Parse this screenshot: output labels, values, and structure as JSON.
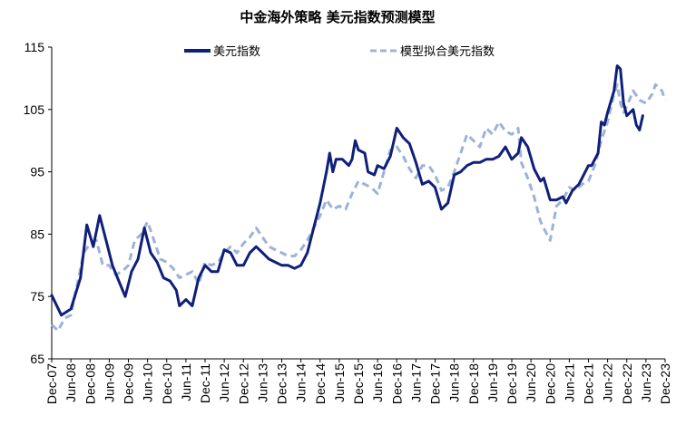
{
  "chart_data": {
    "type": "line",
    "title": "中金海外策略 美元指数预测模型",
    "xlabel": "",
    "ylabel": "",
    "ylim": [
      65,
      115
    ],
    "yticks": [
      65,
      75,
      85,
      95,
      105,
      115
    ],
    "x_start": "Dec-07",
    "x_end": "Dec-23",
    "x_ticks": [
      "Dec-07",
      "Jun-08",
      "Dec-08",
      "Jun-09",
      "Dec-09",
      "Jun-10",
      "Dec-10",
      "Jun-11",
      "Dec-11",
      "Jun-12",
      "Dec-12",
      "Jun-13",
      "Dec-13",
      "Jun-14",
      "Dec-14",
      "Jun-15",
      "Dec-15",
      "Jun-16",
      "Dec-16",
      "Jun-17",
      "Dec-17",
      "Jun-18",
      "Dec-18",
      "Jun-19",
      "Dec-19",
      "Jun-20",
      "Dec-20",
      "Jun-21",
      "Dec-21",
      "Jun-22",
      "Dec-22",
      "Jun-23",
      "Dec-23"
    ],
    "legend_position": "top",
    "grid": false,
    "series": [
      {
        "name": "美元指数",
        "style": "solid",
        "color": "#0f1f7a",
        "points": [
          [
            "Dec-07",
            75.2
          ],
          [
            "Mar-08",
            72.0
          ],
          [
            "Jun-08",
            73.0
          ],
          [
            "Sep-08",
            78.0
          ],
          [
            "Nov-08",
            86.5
          ],
          [
            "Jan-09",
            83.0
          ],
          [
            "Mar-09",
            88.0
          ],
          [
            "May-09",
            84.0
          ],
          [
            "Jul-09",
            80.0
          ],
          [
            "Sep-09",
            77.5
          ],
          [
            "Nov-09",
            75.0
          ],
          [
            "Jan-10",
            79.0
          ],
          [
            "Mar-10",
            81.0
          ],
          [
            "May-10",
            86.0
          ],
          [
            "Jul-10",
            82.0
          ],
          [
            "Sep-10",
            80.5
          ],
          [
            "Nov-10",
            78.0
          ],
          [
            "Jan-11",
            77.5
          ],
          [
            "Mar-11",
            76.0
          ],
          [
            "Apr-11",
            73.5
          ],
          [
            "Jun-11",
            74.5
          ],
          [
            "Aug-11",
            73.5
          ],
          [
            "Oct-11",
            78.0
          ],
          [
            "Dec-11",
            80.0
          ],
          [
            "Feb-12",
            79.0
          ],
          [
            "Apr-12",
            79.0
          ],
          [
            "Jun-12",
            82.5
          ],
          [
            "Aug-12",
            82.0
          ],
          [
            "Oct-12",
            80.0
          ],
          [
            "Dec-12",
            80.0
          ],
          [
            "Feb-13",
            82.0
          ],
          [
            "Apr-13",
            83.0
          ],
          [
            "Jun-13",
            82.0
          ],
          [
            "Aug-13",
            81.0
          ],
          [
            "Oct-13",
            80.5
          ],
          [
            "Dec-13",
            80.0
          ],
          [
            "Feb-14",
            80.0
          ],
          [
            "Apr-14",
            79.5
          ],
          [
            "Jun-14",
            80.0
          ],
          [
            "Aug-14",
            82.0
          ],
          [
            "Oct-14",
            86.0
          ],
          [
            "Dec-14",
            90.0
          ],
          [
            "Feb-15",
            95.0
          ],
          [
            "Mar-15",
            98.0
          ],
          [
            "Apr-15",
            95.0
          ],
          [
            "May-15",
            97.0
          ],
          [
            "Jul-15",
            97.0
          ],
          [
            "Sep-15",
            96.0
          ],
          [
            "Oct-15",
            97.0
          ],
          [
            "Nov-15",
            100.0
          ],
          [
            "Dec-15",
            98.5
          ],
          [
            "Feb-16",
            98.0
          ],
          [
            "Mar-16",
            95.0
          ],
          [
            "May-16",
            94.5
          ],
          [
            "Jun-16",
            96.0
          ],
          [
            "Aug-16",
            95.5
          ],
          [
            "Oct-16",
            97.5
          ],
          [
            "Dec-16",
            102.0
          ],
          [
            "Feb-17",
            100.5
          ],
          [
            "Apr-17",
            99.5
          ],
          [
            "Jun-17",
            96.5
          ],
          [
            "Aug-17",
            93.0
          ],
          [
            "Oct-17",
            93.5
          ],
          [
            "Dec-17",
            92.5
          ],
          [
            "Feb-18",
            89.0
          ],
          [
            "Apr-18",
            90.0
          ],
          [
            "Jun-18",
            94.5
          ],
          [
            "Aug-18",
            95.0
          ],
          [
            "Oct-18",
            96.0
          ],
          [
            "Dec-18",
            96.5
          ],
          [
            "Feb-19",
            96.5
          ],
          [
            "Apr-19",
            97.0
          ],
          [
            "Jun-19",
            97.0
          ],
          [
            "Aug-19",
            97.5
          ],
          [
            "Oct-19",
            99.0
          ],
          [
            "Dec-19",
            97.0
          ],
          [
            "Feb-20",
            98.0
          ],
          [
            "Mar-20",
            100.5
          ],
          [
            "May-20",
            99.0
          ],
          [
            "Jul-20",
            95.5
          ],
          [
            "Sep-20",
            93.5
          ],
          [
            "Oct-20",
            94.0
          ],
          [
            "Dec-20",
            90.5
          ],
          [
            "Feb-21",
            90.5
          ],
          [
            "Apr-21",
            91.0
          ],
          [
            "May-21",
            90.0
          ],
          [
            "Jul-21",
            92.0
          ],
          [
            "Sep-21",
            93.0
          ],
          [
            "Oct-21",
            94.0
          ],
          [
            "Dec-21",
            96.0
          ],
          [
            "Jan-22",
            96.0
          ],
          [
            "Mar-22",
            98.0
          ],
          [
            "Apr-22",
            103.0
          ],
          [
            "May-22",
            102.5
          ],
          [
            "Jun-22",
            104.5
          ],
          [
            "Aug-22",
            108.0
          ],
          [
            "Sep-22",
            112.0
          ],
          [
            "Oct-22",
            111.5
          ],
          [
            "Nov-22",
            106.0
          ],
          [
            "Dec-22",
            104.0
          ],
          [
            "Feb-23",
            105.0
          ],
          [
            "Mar-23",
            102.5
          ],
          [
            "Apr-23",
            101.7
          ],
          [
            "May-23",
            104.0
          ]
        ]
      },
      {
        "name": "模型拟合美元指数",
        "style": "dashed",
        "color": "#9cb3d8",
        "points": [
          [
            "Dec-07",
            70.5
          ],
          [
            "Feb-08",
            69.5
          ],
          [
            "Apr-08",
            71.5
          ],
          [
            "Jun-08",
            72.0
          ],
          [
            "Aug-08",
            77.0
          ],
          [
            "Oct-08",
            82.0
          ],
          [
            "Dec-08",
            83.5
          ],
          [
            "Feb-09",
            84.0
          ],
          [
            "Apr-09",
            80.0
          ],
          [
            "Jun-09",
            80.0
          ],
          [
            "Aug-09",
            78.5
          ],
          [
            "Oct-09",
            79.0
          ],
          [
            "Dec-09",
            80.0
          ],
          [
            "Feb-10",
            84.0
          ],
          [
            "Apr-10",
            85.0
          ],
          [
            "Jun-10",
            87.0
          ],
          [
            "Aug-10",
            84.0
          ],
          [
            "Oct-10",
            81.0
          ],
          [
            "Dec-10",
            80.5
          ],
          [
            "Feb-11",
            79.5
          ],
          [
            "Apr-11",
            78.0
          ],
          [
            "Jun-11",
            78.5
          ],
          [
            "Aug-11",
            79.0
          ],
          [
            "Oct-11",
            77.0
          ],
          [
            "Dec-11",
            80.5
          ],
          [
            "Feb-12",
            80.0
          ],
          [
            "Apr-12",
            80.5
          ],
          [
            "Jun-12",
            82.0
          ],
          [
            "Aug-12",
            83.0
          ],
          [
            "Oct-12",
            82.0
          ],
          [
            "Dec-12",
            83.5
          ],
          [
            "Feb-13",
            84.5
          ],
          [
            "Apr-13",
            86.0
          ],
          [
            "Jun-13",
            84.5
          ],
          [
            "Aug-13",
            83.0
          ],
          [
            "Oct-13",
            82.5
          ],
          [
            "Dec-13",
            82.0
          ],
          [
            "Feb-14",
            81.5
          ],
          [
            "Apr-14",
            81.5
          ],
          [
            "Jun-14",
            82.5
          ],
          [
            "Aug-14",
            84.0
          ],
          [
            "Oct-14",
            86.0
          ],
          [
            "Dec-14",
            88.0
          ],
          [
            "Feb-15",
            90.5
          ],
          [
            "Apr-15",
            89.0
          ],
          [
            "Jun-15",
            89.5
          ],
          [
            "Aug-15",
            89.0
          ],
          [
            "Oct-15",
            91.5
          ],
          [
            "Dec-15",
            93.5
          ],
          [
            "Feb-16",
            93.0
          ],
          [
            "Apr-16",
            92.5
          ],
          [
            "Jun-16",
            91.5
          ],
          [
            "Aug-16",
            95.0
          ],
          [
            "Oct-16",
            98.5
          ],
          [
            "Dec-16",
            99.0
          ],
          [
            "Feb-17",
            97.5
          ],
          [
            "Apr-17",
            95.5
          ],
          [
            "Jun-17",
            94.0
          ],
          [
            "Aug-17",
            96.0
          ],
          [
            "Oct-17",
            96.0
          ],
          [
            "Dec-17",
            94.5
          ],
          [
            "Feb-18",
            92.0
          ],
          [
            "Apr-18",
            92.5
          ],
          [
            "Jun-18",
            95.0
          ],
          [
            "Aug-18",
            98.0
          ],
          [
            "Oct-18",
            101.0
          ],
          [
            "Dec-18",
            100.0
          ],
          [
            "Feb-19",
            99.0
          ],
          [
            "Apr-19",
            102.0
          ],
          [
            "Jun-19",
            101.0
          ],
          [
            "Aug-19",
            103.0
          ],
          [
            "Oct-19",
            101.5
          ],
          [
            "Dec-19",
            101.0
          ],
          [
            "Feb-20",
            102.0
          ],
          [
            "Mar-20",
            96.5
          ],
          [
            "May-20",
            94.0
          ],
          [
            "Jul-20",
            91.0
          ],
          [
            "Sep-20",
            87.0
          ],
          [
            "Oct-20",
            86.0
          ],
          [
            "Nov-20",
            85.0
          ],
          [
            "Dec-20",
            84.0
          ],
          [
            "Feb-21",
            89.5
          ],
          [
            "Apr-21",
            90.5
          ],
          [
            "Jun-21",
            92.5
          ],
          [
            "Aug-21",
            92.0
          ],
          [
            "Oct-21",
            93.0
          ],
          [
            "Dec-21",
            93.5
          ],
          [
            "Feb-22",
            96.0
          ],
          [
            "Apr-22",
            100.0
          ],
          [
            "Jun-22",
            103.0
          ],
          [
            "Aug-22",
            107.5
          ],
          [
            "Sep-22",
            109.0
          ],
          [
            "Oct-22",
            106.0
          ],
          [
            "Nov-22",
            104.5
          ],
          [
            "Dec-22",
            105.5
          ],
          [
            "Feb-23",
            108.0
          ],
          [
            "Apr-23",
            106.5
          ],
          [
            "Jun-23",
            106.0
          ],
          [
            "Aug-23",
            107.5
          ],
          [
            "Sep-23",
            109.0
          ],
          [
            "Nov-23",
            108.0
          ],
          [
            "Dec-23",
            106.5
          ]
        ]
      }
    ]
  }
}
